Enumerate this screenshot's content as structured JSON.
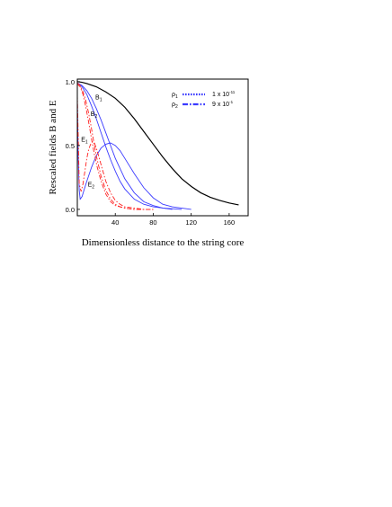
{
  "chart_data": {
    "type": "line",
    "title": "",
    "xlabel": "Dimensionless distance to the string core",
    "ylabel": "Rescaled fields B and E",
    "xlim": [
      0,
      180
    ],
    "ylim": [
      -0.05,
      1.02
    ],
    "xticks": [
      {
        "value": 40,
        "label": "40"
      },
      {
        "value": 80,
        "label": "80"
      },
      {
        "value": 120,
        "label": "120"
      },
      {
        "value": 160,
        "label": "160"
      }
    ],
    "yticks": [
      {
        "value": 0.0,
        "label": "0.0"
      },
      {
        "value": 0.5,
        "label": "0.5"
      },
      {
        "value": 1.0,
        "label": "1.0"
      }
    ],
    "grid": false,
    "legend": {
      "placement": "top-right",
      "entries": [
        {
          "symbol": "ρ",
          "sub": "1",
          "text": "1 x 10",
          "exp": "-11",
          "dash": "dot"
        },
        {
          "symbol": "ρ",
          "sub": "2",
          "text": "9 x 10",
          "exp": "-1",
          "dash": "dashdot"
        }
      ]
    },
    "curve_labels": [
      {
        "main": "B",
        "sub": "1",
        "x": 19,
        "y": 0.86
      },
      {
        "main": "B",
        "sub": "2",
        "x": 14,
        "y": 0.73
      },
      {
        "main": "E",
        "sub": "1",
        "x": 4,
        "y": 0.53
      },
      {
        "main": "E",
        "sub": "2",
        "x": 11,
        "y": 0.18
      }
    ],
    "colors": {
      "black": "#000000",
      "blue": "#3a3aff",
      "red": "#ff2020"
    },
    "series": [
      {
        "color": "black",
        "style": "solid",
        "x": [
          0,
          5,
          10,
          20,
          30,
          40,
          50,
          60,
          70,
          80,
          90,
          100,
          110,
          120,
          130,
          140,
          150,
          160,
          170
        ],
        "y": [
          1.0,
          0.995,
          0.985,
          0.96,
          0.92,
          0.87,
          0.8,
          0.71,
          0.61,
          0.51,
          0.41,
          0.32,
          0.24,
          0.18,
          0.13,
          0.095,
          0.07,
          0.05,
          0.035
        ]
      },
      {
        "color": "blue",
        "style": "solid",
        "x": [
          0,
          5,
          10,
          15,
          20,
          25,
          30,
          35,
          40,
          50,
          60,
          70,
          80,
          90,
          100
        ],
        "y": [
          0.99,
          0.97,
          0.93,
          0.87,
          0.79,
          0.7,
          0.6,
          0.5,
          0.4,
          0.24,
          0.13,
          0.06,
          0.03,
          0.01,
          0.0
        ]
      },
      {
        "color": "blue",
        "style": "solid",
        "x": [
          0,
          5,
          10,
          15,
          20,
          25,
          30,
          35,
          40,
          45,
          50,
          60,
          70,
          80,
          90,
          100,
          110
        ],
        "y": [
          0.99,
          0.96,
          0.9,
          0.81,
          0.71,
          0.6,
          0.49,
          0.39,
          0.3,
          0.22,
          0.16,
          0.08,
          0.04,
          0.02,
          0.01,
          0.005,
          0.0
        ]
      },
      {
        "color": "blue",
        "style": "solid",
        "x": [
          0,
          1,
          2,
          3,
          5,
          7,
          10,
          15,
          20,
          25,
          30,
          35,
          40,
          45,
          50,
          60,
          70,
          80,
          90,
          100,
          120
        ],
        "y": [
          0.85,
          0.4,
          0.15,
          0.08,
          0.1,
          0.15,
          0.22,
          0.33,
          0.42,
          0.48,
          0.51,
          0.52,
          0.5,
          0.46,
          0.4,
          0.28,
          0.17,
          0.09,
          0.04,
          0.02,
          0.0
        ]
      },
      {
        "color": "red",
        "style": "dashdot",
        "x": [
          0,
          3,
          6,
          9,
          12,
          15,
          18,
          20,
          25,
          30,
          35,
          40,
          45,
          50,
          60,
          70,
          80
        ],
        "y": [
          0.99,
          0.97,
          0.92,
          0.85,
          0.75,
          0.63,
          0.5,
          0.42,
          0.26,
          0.15,
          0.08,
          0.04,
          0.02,
          0.01,
          0.0,
          0.0,
          0.0
        ]
      },
      {
        "color": "red",
        "style": "dashdot",
        "x": [
          0,
          3,
          6,
          9,
          12,
          15,
          18,
          21,
          25,
          30,
          35,
          40,
          50,
          60,
          70,
          80
        ],
        "y": [
          0.98,
          0.96,
          0.9,
          0.8,
          0.68,
          0.55,
          0.43,
          0.33,
          0.22,
          0.12,
          0.06,
          0.03,
          0.01,
          0.0,
          0.0,
          0.0
        ]
      },
      {
        "color": "red",
        "style": "dashdot",
        "x": [
          0,
          2,
          4,
          6,
          8,
          10,
          12,
          14,
          16,
          18,
          20,
          22,
          25,
          30,
          35,
          40,
          45,
          50,
          60,
          70,
          80
        ],
        "y": [
          0.9,
          0.2,
          0.14,
          0.2,
          0.3,
          0.4,
          0.47,
          0.51,
          0.53,
          0.52,
          0.48,
          0.43,
          0.35,
          0.22,
          0.13,
          0.07,
          0.04,
          0.02,
          0.01,
          0.0,
          0.0
        ]
      }
    ]
  }
}
